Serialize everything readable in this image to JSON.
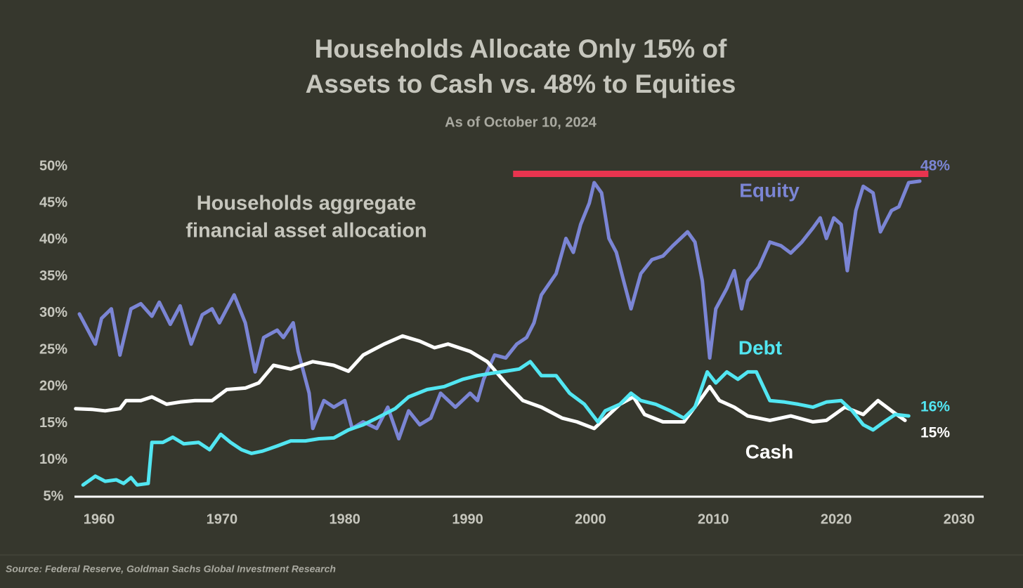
{
  "chart_data": {
    "type": "line",
    "title": [
      "Households Allocate Only 15% of",
      "Assets to Cash vs. 48% to Equities"
    ],
    "subtitle": "As of October 10, 2024",
    "annotation": [
      "Households aggregate",
      "financial asset allocation"
    ],
    "source": "Source: Federal Reserve, Goldman Sachs Global Investment Research",
    "xlim": [
      1958,
      2032
    ],
    "xticks": [
      1960,
      1970,
      1980,
      1990,
      2000,
      2010,
      2020,
      2030
    ],
    "ylim": [
      5,
      50
    ],
    "yticks": [
      {
        "value": 5,
        "label": "5%"
      },
      {
        "value": 10,
        "label": "10%"
      },
      {
        "value": 15,
        "label": "15%"
      },
      {
        "value": 20,
        "label": "20%"
      },
      {
        "value": 25,
        "label": "25%"
      },
      {
        "value": 30,
        "label": "30%"
      },
      {
        "value": 35,
        "label": "35%"
      },
      {
        "value": 40,
        "label": "40%"
      },
      {
        "value": 45,
        "label": "45%"
      },
      {
        "value": 50,
        "label": "50%"
      }
    ],
    "grid": false,
    "reference_line": {
      "value": 49,
      "x": [
        1993.7,
        2027.5
      ],
      "color": "#e8344f"
    },
    "series": [
      {
        "name": "Equity",
        "color": "#7b85d4",
        "end_label": "48%",
        "x": [
          1958.4,
          1959.1,
          1959.7,
          1960.2,
          1961.0,
          1961.7,
          1962.6,
          1963.4,
          1964.3,
          1964.9,
          1965.8,
          1966.6,
          1967.5,
          1968.4,
          1969.2,
          1969.8,
          1970.4,
          1971.0,
          1971.9,
          1972.7,
          1973.4,
          1974.5,
          1975.0,
          1975.8,
          1976.2,
          1977.1,
          1977.4,
          1978.3,
          1979.1,
          1980.0,
          1980.6,
          1981.5,
          1982.6,
          1983.5,
          1984.4,
          1985.2,
          1986.1,
          1987.0,
          1987.8,
          1989.0,
          1990.2,
          1990.8,
          1991.3,
          1992.2,
          1993.1,
          1994.0,
          1994.8,
          1995.4,
          1996.0,
          1997.2,
          1998.0,
          1998.6,
          1999.2,
          1999.9,
          2000.3,
          2000.9,
          2001.5,
          2002.1,
          2002.7,
          2003.3,
          2004.1,
          2005.0,
          2005.9,
          2006.7,
          2007.9,
          2008.5,
          2009.1,
          2009.7,
          2010.2,
          2011.1,
          2011.7,
          2012.3,
          2012.8,
          2013.7,
          2014.6,
          2015.5,
          2016.3,
          2017.2,
          2018.1,
          2018.7,
          2019.2,
          2019.8,
          2020.4,
          2020.9,
          2021.6,
          2022.2,
          2023.0,
          2023.6,
          2024.5,
          2025.1,
          2025.9,
          2026.8
        ],
        "values": [
          29.9,
          27.7,
          25.8,
          29.3,
          30.6,
          24.3,
          30.6,
          31.3,
          29.6,
          31.5,
          28.5,
          31.0,
          25.8,
          29.8,
          30.6,
          28.7,
          30.6,
          32.5,
          28.7,
          22.0,
          26.7,
          27.7,
          26.7,
          28.7,
          24.8,
          19.1,
          14.3,
          18.1,
          17.2,
          18.1,
          14.3,
          15.2,
          14.3,
          17.2,
          12.9,
          16.7,
          14.8,
          15.7,
          19.1,
          17.2,
          19.1,
          18.1,
          21.0,
          24.3,
          23.9,
          25.8,
          26.7,
          28.7,
          32.5,
          35.4,
          40.2,
          38.3,
          42.1,
          45.0,
          47.8,
          46.4,
          40.2,
          38.3,
          34.4,
          30.6,
          35.4,
          37.3,
          37.8,
          39.2,
          41.1,
          39.7,
          34.4,
          23.9,
          30.6,
          33.4,
          35.8,
          30.6,
          34.4,
          36.3,
          39.7,
          39.2,
          38.2,
          39.7,
          41.6,
          43.0,
          40.2,
          43.0,
          42.1,
          35.8,
          44.0,
          47.3,
          46.4,
          41.1,
          44.0,
          44.5,
          47.8,
          48
        ]
      },
      {
        "name": "Debt",
        "color": "#52e6f2",
        "end_label": "16%",
        "x": [
          1958.7,
          1959.7,
          1960.5,
          1961.4,
          1962.0,
          1962.6,
          1963.1,
          1964.0,
          1964.3,
          1965.2,
          1966.0,
          1966.9,
          1968.1,
          1969.0,
          1969.9,
          1970.7,
          1971.6,
          1972.4,
          1973.3,
          1974.5,
          1975.6,
          1976.8,
          1977.9,
          1979.1,
          1980.3,
          1981.5,
          1982.6,
          1984.1,
          1985.2,
          1986.7,
          1988.1,
          1989.6,
          1990.8,
          1991.9,
          1993.1,
          1994.2,
          1995.1,
          1996.0,
          1997.2,
          1998.3,
          1999.5,
          2000.6,
          2001.2,
          2002.4,
          2003.3,
          2004.1,
          2005.3,
          2006.5,
          2007.6,
          2008.5,
          2009.5,
          2010.2,
          2011.1,
          2012.0,
          2012.8,
          2013.5,
          2014.6,
          2015.8,
          2016.9,
          2018.1,
          2019.2,
          2020.4,
          2021.3,
          2022.2,
          2023.0,
          2023.9,
          2024.8,
          2025.9
        ],
        "values": [
          6.6,
          7.8,
          7.1,
          7.3,
          6.8,
          7.6,
          6.6,
          6.8,
          12.4,
          12.4,
          13.1,
          12.2,
          12.4,
          11.4,
          13.5,
          12.4,
          11.4,
          10.9,
          11.2,
          11.9,
          12.6,
          12.6,
          12.9,
          13.0,
          14.1,
          14.8,
          15.7,
          17.0,
          18.6,
          19.6,
          20.0,
          21.0,
          21.5,
          21.8,
          22.1,
          22.4,
          23.4,
          21.5,
          21.5,
          19.1,
          17.6,
          15.2,
          16.7,
          17.6,
          19.1,
          18.1,
          17.6,
          16.7,
          15.7,
          17.2,
          22.0,
          20.5,
          22.0,
          21.0,
          22.0,
          22.0,
          18.1,
          17.9,
          17.6,
          17.2,
          17.9,
          18.1,
          16.7,
          14.8,
          14.1,
          15.2,
          16.2,
          16
        ]
      },
      {
        "name": "Cash",
        "color": "#ffffff",
        "end_label": "15%",
        "x": [
          1958.1,
          1959.4,
          1960.5,
          1961.7,
          1962.2,
          1963.4,
          1964.3,
          1965.5,
          1966.6,
          1967.8,
          1969.2,
          1970.4,
          1971.9,
          1973.0,
          1974.2,
          1975.6,
          1977.4,
          1979.1,
          1980.3,
          1981.5,
          1983.2,
          1984.7,
          1986.1,
          1987.3,
          1988.4,
          1990.2,
          1991.6,
          1993.1,
          1994.5,
          1996.0,
          1997.7,
          1998.9,
          2000.3,
          2001.2,
          2002.4,
          2003.5,
          2004.4,
          2005.9,
          2007.6,
          2009.1,
          2009.7,
          2010.5,
          2011.7,
          2012.8,
          2014.6,
          2016.3,
          2018.1,
          2019.2,
          2020.7,
          2022.2,
          2023.4,
          2024.5,
          2025.6
        ],
        "values": [
          17.0,
          16.9,
          16.7,
          17.0,
          18.1,
          18.1,
          18.6,
          17.6,
          17.9,
          18.1,
          18.1,
          19.6,
          19.8,
          20.5,
          22.9,
          22.4,
          23.4,
          22.9,
          22.1,
          24.3,
          25.8,
          26.9,
          26.2,
          25.3,
          25.8,
          24.8,
          23.4,
          20.5,
          18.1,
          17.2,
          15.7,
          15.2,
          14.3,
          15.7,
          17.6,
          18.6,
          16.2,
          15.2,
          15.2,
          18.6,
          20.0,
          18.1,
          17.2,
          16.0,
          15.4,
          16.0,
          15.2,
          15.4,
          17.2,
          16.2,
          18.1,
          16.7,
          15.4
        ]
      }
    ]
  }
}
